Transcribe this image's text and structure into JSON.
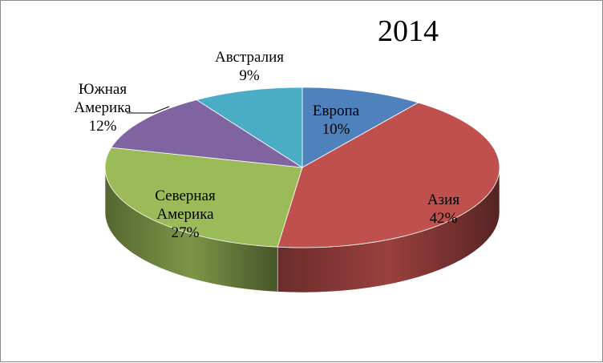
{
  "chart_data": {
    "type": "pie",
    "title": "2014",
    "slices": [
      {
        "name": "Европа",
        "value": 10,
        "label_lines": [
          "Европа",
          "10%"
        ],
        "color": "#4f81bd"
      },
      {
        "name": "Азия",
        "value": 42,
        "label_lines": [
          "Азия",
          "42%"
        ],
        "color": "#c0504d"
      },
      {
        "name": "Северная Америка",
        "value": 27,
        "label_lines": [
          "Северная",
          "Америка",
          "27%"
        ],
        "color": "#9bbb59"
      },
      {
        "name": "Южная Америка",
        "value": 12,
        "label_lines": [
          "Южная",
          "Америка",
          "12%"
        ],
        "color": "#8064a2"
      },
      {
        "name": "Австралия",
        "value": 9,
        "label_lines": [
          "Австралия",
          "9%"
        ],
        "color": "#4bacc6"
      }
    ]
  }
}
